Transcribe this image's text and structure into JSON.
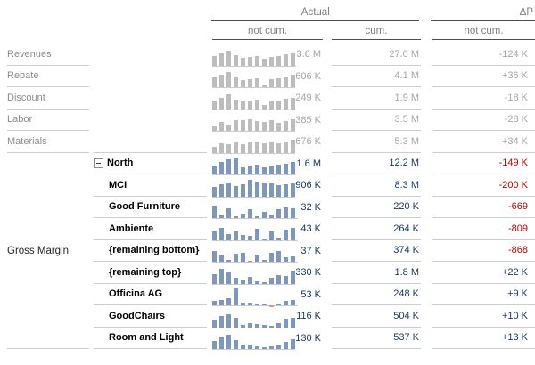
{
  "header": {
    "actual_label": "Actual",
    "delta_label": "ΔP",
    "sub_not_cum_1": "not cum.",
    "sub_cum": "cum.",
    "sub_not_cum_2": "not cum."
  },
  "group_label": "Gross Margin",
  "colors": {
    "muted_bar": "#bdbdbd",
    "highlight_bar": "#7d97bd",
    "neg_bar": "#d99694",
    "navy": "#17365d",
    "red": "#c00000",
    "muted_text": "#a6a6a6",
    "label_gray": "#8c8c8c"
  },
  "chart_data": {
    "type": "table",
    "sparkline_type": "bar",
    "columns": [
      "row label",
      "Actual not cum. (sparkline + value)",
      "Actual cum.",
      "ΔP not cum."
    ],
    "rows": [
      {
        "label": "Revenues",
        "column": "section",
        "theme": "muted",
        "collapse": false,
        "indent": false,
        "spark": [
          55,
          72,
          88,
          62,
          45,
          52,
          58,
          38,
          52,
          58,
          68,
          75
        ],
        "not_cum": "3.6 M",
        "cum": "27.0 M",
        "delta": "-124 K"
      },
      {
        "label": "Rebate",
        "column": "section",
        "theme": "muted",
        "collapse": false,
        "indent": false,
        "spark": [
          58,
          75,
          90,
          62,
          42,
          48,
          52,
          12,
          48,
          55,
          65,
          72
        ],
        "not_cum": "606 K",
        "cum": "4.1 M",
        "delta": "+36 K"
      },
      {
        "label": "Discount",
        "column": "section",
        "theme": "muted",
        "collapse": false,
        "indent": false,
        "spark": [
          52,
          68,
          85,
          58,
          45,
          50,
          55,
          22,
          48,
          52,
          60,
          66
        ],
        "not_cum": "249 K",
        "cum": "1.9 M",
        "delta": "-18 K"
      },
      {
        "label": "Labor",
        "column": "section",
        "theme": "muted",
        "collapse": false,
        "indent": false,
        "spark": [
          28,
          52,
          38,
          62,
          65,
          70,
          58,
          52,
          62,
          48,
          58,
          68
        ],
        "not_cum": "385 K",
        "cum": "3.5 M",
        "delta": "-28 K"
      },
      {
        "label": "Materials",
        "column": "section",
        "theme": "muted",
        "collapse": false,
        "indent": false,
        "spark": [
          35,
          58,
          48,
          68,
          52,
          62,
          68,
          58,
          64,
          58,
          68,
          74
        ],
        "not_cum": "676 K",
        "cum": "5.3 M",
        "delta": "+34 K"
      },
      {
        "label": "North",
        "column": "item",
        "theme": "hl",
        "collapse": true,
        "indent": false,
        "spark": [
          52,
          72,
          88,
          100,
          42,
          52,
          58,
          42,
          52,
          58,
          64,
          74
        ],
        "not_cum": "1.6 M",
        "cum": "12.2 M",
        "delta": "-149 K"
      },
      {
        "label": "MCI",
        "column": "item",
        "theme": "hl",
        "collapse": false,
        "indent": true,
        "spark": [
          55,
          72,
          80,
          62,
          70,
          95,
          88,
          78,
          74,
          68,
          72,
          78
        ],
        "not_cum": "906 K",
        "cum": "8.3 M",
        "delta": "-200 K"
      },
      {
        "label": "Good Furniture",
        "column": "item",
        "theme": "hl",
        "collapse": false,
        "indent": true,
        "spark": [
          75,
          22,
          58,
          10,
          28,
          52,
          10,
          38,
          22,
          52,
          66,
          60
        ],
        "not_cum": "32 K",
        "cum": "220 K",
        "delta": "-669"
      },
      {
        "label": "Ambiente",
        "column": "item",
        "theme": "hl",
        "collapse": false,
        "indent": true,
        "spark": [
          50,
          70,
          34,
          52,
          30,
          24,
          64,
          8,
          52,
          16,
          60,
          70
        ],
        "not_cum": "43 K",
        "cum": "264 K",
        "delta": "-809"
      },
      {
        "label": "{remaining bottom}",
        "column": "item",
        "theme": "hl",
        "collapse": false,
        "indent": true,
        "spark": [
          62,
          42,
          10,
          48,
          52,
          8,
          42,
          10,
          52,
          62,
          28,
          34
        ],
        "not_cum": "37 K",
        "cum": "374 K",
        "delta": "-868"
      },
      {
        "label": "{remaining top}",
        "column": "item",
        "theme": "hl",
        "collapse": false,
        "indent": true,
        "spark": [
          58,
          85,
          68,
          34,
          24,
          38,
          14,
          8,
          34,
          52,
          44,
          78
        ],
        "not_cum": "330 K",
        "cum": "1.8 M",
        "delta": "+22 K"
      },
      {
        "label": "Officina AG",
        "column": "item",
        "theme": "hl",
        "collapse": false,
        "indent": true,
        "spark": [
          24,
          34,
          40,
          100,
          14,
          14,
          12,
          8,
          -12,
          10,
          28,
          34
        ],
        "not_cum": "53 K",
        "cum": "248 K",
        "delta": "+9 K"
      },
      {
        "label": "GoodChairs",
        "column": "item",
        "theme": "hl",
        "collapse": false,
        "indent": true,
        "spark": [
          44,
          68,
          78,
          58,
          14,
          24,
          18,
          12,
          10,
          24,
          48,
          58
        ],
        "not_cum": "116 K",
        "cum": "504 K",
        "delta": "+10 K"
      },
      {
        "label": "Room and Light",
        "column": "item",
        "theme": "hl",
        "collapse": false,
        "indent": true,
        "spark": [
          48,
          72,
          84,
          54,
          24,
          28,
          18,
          10,
          14,
          20,
          44,
          58
        ],
        "not_cum": "130 K",
        "cum": "537 K",
        "delta": "+13 K"
      }
    ]
  }
}
